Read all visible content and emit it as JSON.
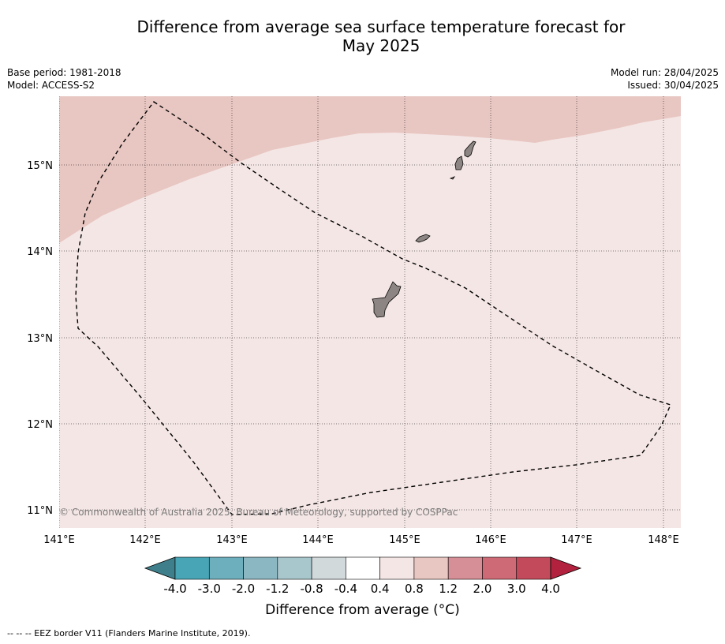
{
  "title": {
    "line1": "Difference from average sea surface temperature forecast for",
    "line2": "May 2025"
  },
  "meta": {
    "base_period": "Base period: 1981-2018",
    "model": "Model: ACCESS-S2",
    "model_run": "Model run: 28/04/2025",
    "issued": "Issued: 30/04/2025"
  },
  "map": {
    "lon_ticks": [
      "141°E",
      "142°E",
      "143°E",
      "144°E",
      "145°E",
      "146°E",
      "147°E",
      "148°E"
    ],
    "lat_ticks": [
      "15°N",
      "14°N",
      "13°N",
      "12°N",
      "11°N"
    ],
    "copyright": "© Commonwealth of Australia 2025, Bureau of Meteorology, supported by COSPPac",
    "land_color": "#8c8583",
    "band_0_4_to_0_8_color": "#f4e6e5",
    "band_0_8_to_1_2_color": "#e8c6c1"
  },
  "colorbar": {
    "ticks": [
      "-4.0",
      "-3.0",
      "-2.0",
      "-1.2",
      "-0.8",
      "-0.4",
      "0.4",
      "0.8",
      "1.2",
      "2.0",
      "3.0",
      "4.0"
    ],
    "colors": [
      "#3e7f8b",
      "#48a5b5",
      "#6dafbd",
      "#8bb7c3",
      "#a8c7cc",
      "#d2d9db",
      "#ffffff",
      "#f4e6e5",
      "#e8c6c1",
      "#d78f97",
      "#ce6a75",
      "#c34a5a",
      "#b2213d"
    ],
    "label": "Difference from average ($^\\circ$C)",
    "label_display": "Difference from average (°C)"
  },
  "footnote": "--  --  -- EEZ border V11 (Flanders Marine Institute, 2019)."
}
